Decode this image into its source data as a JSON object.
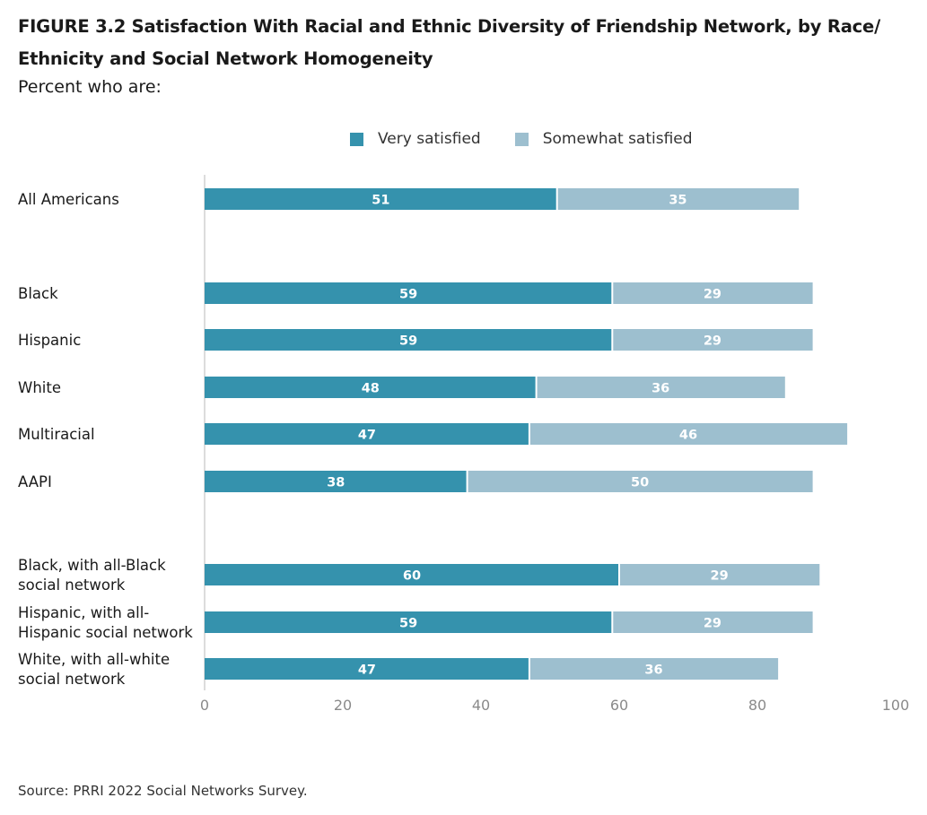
{
  "figure": {
    "title": "FIGURE 3.2  Satisfaction With Racial and Ethnic Diversity of Friendship Network, by Race/ Ethnicity and Social Network Homogeneity",
    "subtitle": "Percent who are:",
    "source": "Source: PRRI 2022 Social Networks Survey."
  },
  "colors": {
    "very_satisfied": "#3592ad",
    "somewhat_satisfied": "#9dbfcf",
    "axis": "#d0d0d0"
  },
  "chart_data": {
    "type": "bar",
    "orientation": "horizontal",
    "stacked": true,
    "categories": [
      "All Americans",
      "Black",
      "Hispanic",
      "White",
      "Multiracial",
      "AAPI",
      "Black, with all-Black social network",
      "Hispanic, with all-Hispanic social network",
      "White, with all-white social network"
    ],
    "category_lines": [
      [
        "All Americans"
      ],
      [
        "Black"
      ],
      [
        "Hispanic"
      ],
      [
        "White"
      ],
      [
        "Multiracial"
      ],
      [
        "AAPI"
      ],
      [
        "Black, with all-Black",
        "social network"
      ],
      [
        "Hispanic, with all-",
        "Hispanic social network"
      ],
      [
        "White, with all-white",
        "social network"
      ]
    ],
    "series": [
      {
        "name": "Very satisfied",
        "values": [
          51,
          59,
          59,
          48,
          47,
          38,
          60,
          59,
          47
        ]
      },
      {
        "name": "Somewhat satisfied",
        "values": [
          35,
          29,
          29,
          36,
          46,
          50,
          29,
          29,
          36
        ]
      }
    ],
    "xlim": [
      0,
      100
    ],
    "xticks": [
      0,
      20,
      40,
      60,
      80,
      100
    ],
    "legend_position": "top",
    "grid": false
  }
}
